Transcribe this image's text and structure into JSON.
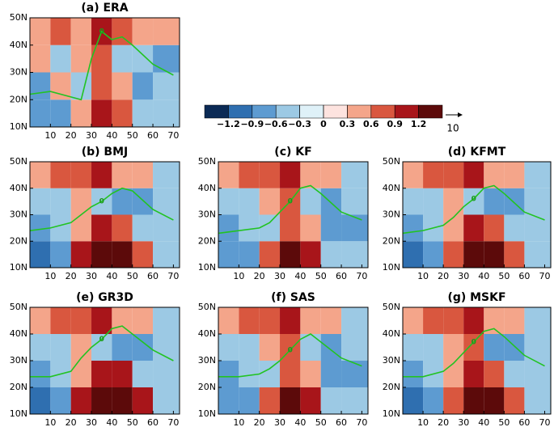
{
  "axes": {
    "xlim": [
      0,
      73
    ],
    "ylim": [
      10,
      50
    ],
    "xticks": [
      10,
      20,
      30,
      40,
      50,
      60,
      70
    ],
    "yticks": [
      {
        "value": 10,
        "label": "10N"
      },
      {
        "value": 20,
        "label": "20N"
      },
      {
        "value": 30,
        "label": "30N"
      },
      {
        "value": 40,
        "label": "40N"
      },
      {
        "value": 50,
        "label": "50N"
      }
    ],
    "x_bins": [
      0,
      10,
      20,
      30,
      40,
      50,
      60,
      73
    ],
    "y_bins": [
      10,
      20,
      30,
      40,
      50
    ]
  },
  "colorbar": {
    "levels": [
      {
        "value": -1.2,
        "label": "−1.2"
      },
      {
        "value": -0.9,
        "label": "−0.9"
      },
      {
        "value": -0.6,
        "label": "−0.6"
      },
      {
        "value": -0.3,
        "label": "−0.3"
      },
      0,
      0.3,
      0.6,
      0.9,
      1.2
    ],
    "colors": [
      "#0b2a55",
      "#2f6fb0",
      "#5d9bd1",
      "#9cc9e4",
      "#dff1f8",
      "#fde3df",
      "#f4a58a",
      "#d9573f",
      "#a8151a",
      "#5c0a0a"
    ],
    "vector_reference": 10
  },
  "chart_data": [
    {
      "type": "heatmap",
      "title": "(a) ERA",
      "contour_level": 0,
      "values": [
        [
          -0.7,
          -0.7,
          0.4,
          1.0,
          0.7,
          -0.4,
          -0.4
        ],
        [
          -0.7,
          0.4,
          -0.4,
          0.7,
          0.4,
          -0.7,
          -0.4
        ],
        [
          0.4,
          -0.4,
          0.4,
          0.7,
          -0.4,
          -0.4,
          -0.7
        ],
        [
          0.4,
          0.7,
          0.4,
          1.0,
          0.7,
          0.4,
          0.4
        ]
      ],
      "contour": {
        "x": [
          0,
          10,
          20,
          25,
          30,
          35,
          40,
          45,
          50,
          60,
          70
        ],
        "y": [
          22,
          23,
          21,
          20,
          35,
          45,
          42,
          43,
          40,
          33,
          29
        ]
      }
    },
    {
      "type": "heatmap",
      "title": "(b) BMJ",
      "contour_level": 0,
      "values": [
        [
          -1.0,
          -0.7,
          1.0,
          1.3,
          1.3,
          0.7,
          -0.4
        ],
        [
          -0.7,
          -0.4,
          0.4,
          1.0,
          0.7,
          -0.4,
          -0.4
        ],
        [
          -0.4,
          -0.4,
          0.4,
          -0.4,
          -0.7,
          -0.7,
          -0.4
        ],
        [
          0.4,
          0.7,
          0.7,
          1.0,
          0.4,
          0.4,
          -0.4
        ]
      ],
      "contour": {
        "x": [
          0,
          10,
          20,
          25,
          30,
          35,
          40,
          45,
          50,
          60,
          70
        ],
        "y": [
          24,
          25,
          27,
          30,
          33,
          35,
          38,
          40,
          39,
          32,
          28
        ]
      }
    },
    {
      "type": "heatmap",
      "title": "(c) KF",
      "contour_level": 0,
      "values": [
        [
          -0.7,
          -0.7,
          0.7,
          1.3,
          1.0,
          -0.4,
          -0.4
        ],
        [
          -0.7,
          -0.4,
          -0.4,
          0.7,
          0.4,
          -0.7,
          -0.7
        ],
        [
          -0.4,
          -0.4,
          0.4,
          0.7,
          -0.4,
          -0.7,
          -0.4
        ],
        [
          0.4,
          0.7,
          0.7,
          1.0,
          0.4,
          0.4,
          -0.4
        ]
      ],
      "contour": {
        "x": [
          0,
          10,
          20,
          25,
          30,
          35,
          40,
          45,
          50,
          60,
          70
        ],
        "y": [
          23,
          24,
          25,
          27,
          31,
          35,
          40,
          41,
          38,
          31,
          28
        ]
      }
    },
    {
      "type": "heatmap",
      "title": "(d) KFMT",
      "contour_level": 0,
      "values": [
        [
          -1.0,
          -0.7,
          0.7,
          1.3,
          1.3,
          0.7,
          -0.4
        ],
        [
          -0.7,
          -0.4,
          0.4,
          1.0,
          0.7,
          -0.4,
          -0.4
        ],
        [
          -0.4,
          -0.4,
          0.4,
          -0.4,
          -0.7,
          -0.7,
          -0.4
        ],
        [
          0.4,
          0.7,
          0.7,
          1.0,
          0.4,
          0.4,
          -0.4
        ]
      ],
      "contour": {
        "x": [
          0,
          10,
          20,
          25,
          30,
          35,
          40,
          45,
          50,
          60,
          70
        ],
        "y": [
          23,
          24,
          26,
          29,
          33,
          36,
          40,
          41,
          38,
          31,
          28
        ]
      }
    },
    {
      "type": "heatmap",
      "title": "(e) GR3D",
      "contour_level": 0,
      "values": [
        [
          -1.0,
          -0.7,
          1.0,
          1.3,
          1.3,
          1.0,
          -0.4
        ],
        [
          -0.7,
          -0.4,
          0.4,
          1.0,
          1.0,
          -0.4,
          -0.4
        ],
        [
          -0.4,
          -0.4,
          0.4,
          -0.4,
          -0.7,
          -0.7,
          -0.4
        ],
        [
          0.4,
          0.7,
          0.7,
          1.0,
          0.4,
          0.4,
          -0.4
        ]
      ],
      "contour": {
        "x": [
          0,
          10,
          20,
          25,
          30,
          35,
          40,
          45,
          50,
          60,
          70
        ],
        "y": [
          24,
          24,
          26,
          31,
          35,
          38,
          42,
          43,
          40,
          34,
          30
        ]
      }
    },
    {
      "type": "heatmap",
      "title": "(f) SAS",
      "contour_level": 0,
      "values": [
        [
          -0.7,
          -0.7,
          0.7,
          1.3,
          1.0,
          -0.4,
          -0.4
        ],
        [
          -0.7,
          -0.4,
          -0.4,
          0.7,
          0.4,
          -0.7,
          -0.7
        ],
        [
          -0.4,
          -0.4,
          0.4,
          0.7,
          -0.4,
          -0.7,
          -0.4
        ],
        [
          0.4,
          0.7,
          0.7,
          1.0,
          0.4,
          0.4,
          -0.4
        ]
      ],
      "contour": {
        "x": [
          0,
          10,
          20,
          25,
          30,
          35,
          40,
          45,
          50,
          60,
          70
        ],
        "y": [
          24,
          24,
          25,
          27,
          30,
          34,
          38,
          40,
          37,
          31,
          28
        ]
      }
    },
    {
      "type": "heatmap",
      "title": "(g) MSKF",
      "contour_level": 0,
      "values": [
        [
          -1.0,
          -0.7,
          0.7,
          1.3,
          1.3,
          0.7,
          -0.4
        ],
        [
          -0.7,
          -0.4,
          0.4,
          1.0,
          0.7,
          -0.4,
          -0.4
        ],
        [
          -0.4,
          -0.4,
          0.4,
          0.7,
          -0.7,
          -0.7,
          -0.4
        ],
        [
          0.4,
          0.7,
          0.7,
          1.0,
          0.4,
          0.4,
          -0.4
        ]
      ],
      "contour": {
        "x": [
          0,
          10,
          20,
          25,
          30,
          35,
          40,
          45,
          50,
          60,
          70
        ],
        "y": [
          24,
          24,
          26,
          29,
          33,
          37,
          41,
          42,
          39,
          32,
          28
        ]
      }
    }
  ]
}
